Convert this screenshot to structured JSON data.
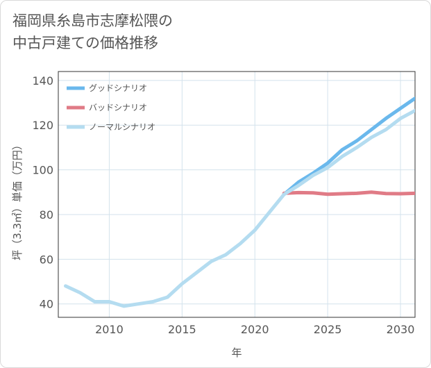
{
  "title_lines": [
    "福岡県糸島市志摩松隈の",
    "中古戸建ての価格推移"
  ],
  "chart_data": {
    "type": "line",
    "title": "福岡県糸島市志摩松隈の中古戸建ての価格推移",
    "xlabel": "年",
    "ylabel": "坪（3.3㎡）単価（万円）",
    "xlim": [
      2006.5,
      2031
    ],
    "ylim": [
      34,
      144
    ],
    "x_ticks": [
      2010,
      2015,
      2020,
      2025,
      2030
    ],
    "y_ticks": [
      40,
      60,
      80,
      100,
      120,
      140
    ],
    "grid": true,
    "legend_position": "top-left",
    "series": [
      {
        "name": "グッドシナリオ",
        "color": "#6ab8ec",
        "x": [
          2022,
          2023,
          2024,
          2025,
          2026,
          2027,
          2028,
          2029,
          2030,
          2031
        ],
        "y": [
          89,
          94.5,
          98.5,
          103,
          109,
          113,
          118,
          123,
          127.5,
          132
        ]
      },
      {
        "name": "バッドシナリオ",
        "color": "#e07b86",
        "x": [
          2022,
          2023,
          2024,
          2025,
          2026,
          2027,
          2028,
          2029,
          2030,
          2031
        ],
        "y": [
          89.5,
          89.8,
          89.7,
          89.1,
          89.3,
          89.5,
          90,
          89.4,
          89.3,
          89.5
        ]
      },
      {
        "name": "ノーマルシナリオ",
        "color": "#b4dcf0",
        "x": [
          2007,
          2008,
          2009,
          2010,
          2011,
          2012,
          2013,
          2014,
          2015,
          2016,
          2017,
          2018,
          2019,
          2020,
          2021,
          2022,
          2023,
          2024,
          2025,
          2026,
          2027,
          2028,
          2029,
          2030,
          2031
        ],
        "y": [
          48,
          45,
          41,
          41,
          39,
          40,
          41,
          43,
          49,
          54,
          59,
          62,
          67,
          73,
          81,
          89,
          93,
          97.5,
          101,
          106,
          110,
          114.5,
          118,
          123,
          126.5
        ]
      }
    ]
  }
}
